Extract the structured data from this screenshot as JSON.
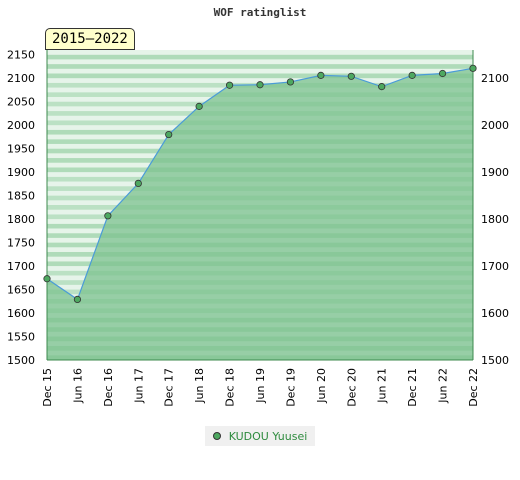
{
  "title": "WOF ratinglist",
  "period_label": "2015–2022",
  "legend": {
    "series_name": "KUDOU Yuusei"
  },
  "colors": {
    "line": "#4a9bd8",
    "area": "#7cc28f",
    "marker": "#4da860",
    "band_dark": "#a8d8b4",
    "band_light": "#e6f4e9"
  },
  "chart_data": {
    "type": "area",
    "title": "WOF ratinglist",
    "xlabel": "",
    "ylabel": "",
    "ylim": [
      1500,
      2160
    ],
    "yticks": [
      1500,
      1550,
      1600,
      1650,
      1700,
      1750,
      1800,
      1850,
      1900,
      1950,
      2000,
      2050,
      2100,
      2150
    ],
    "yticks_right": [
      1500,
      1600,
      1700,
      1800,
      1900,
      2000,
      2100
    ],
    "categories": [
      "Dec 15",
      "Jun 16",
      "Dec 16",
      "Jun 17",
      "Dec 17",
      "Jun 18",
      "Dec 18",
      "Jun 19",
      "Dec 19",
      "Jun 20",
      "Dec 20",
      "Jun 21",
      "Dec 21",
      "Jun 22",
      "Dec 22"
    ],
    "series": [
      {
        "name": "KUDOU Yuusei",
        "values": [
          1673,
          1629,
          1807,
          1876,
          1980,
          2040,
          2085,
          2086,
          2092,
          2106,
          2104,
          2082,
          2106,
          2110,
          2121
        ]
      }
    ],
    "grid": true,
    "legend_position": "bottom-center"
  }
}
